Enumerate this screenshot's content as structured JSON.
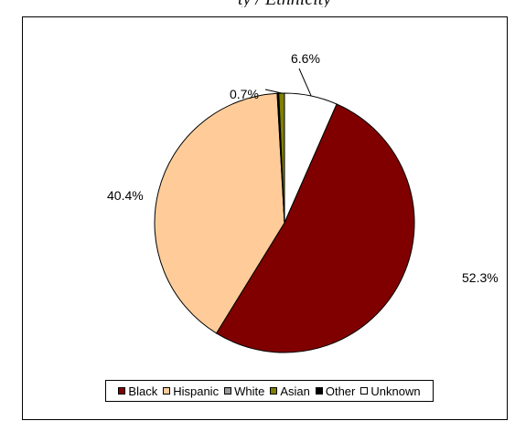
{
  "top_text": "ty / Ethnicity",
  "chart_data": {
    "type": "pie",
    "title": "",
    "categories": [
      "Black",
      "Hispanic",
      "White",
      "Asian",
      "Other",
      "Unknown"
    ],
    "values": [
      52.3,
      40.4,
      0.1,
      0.7,
      0.1,
      6.6
    ],
    "labels": [
      "52.3%",
      "40.4%",
      "",
      "0.7%",
      "",
      "6.6%"
    ],
    "colors": [
      "#800000",
      "#FFCC99",
      "#999999",
      "#808000",
      "#000000",
      "#FFFFFF"
    ],
    "legend_position": "bottom"
  }
}
